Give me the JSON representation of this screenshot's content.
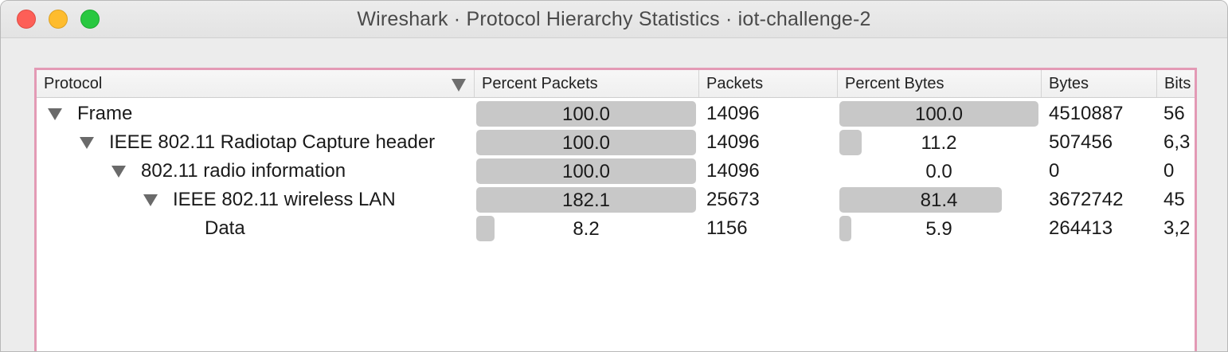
{
  "window": {
    "title": "Wireshark · Protocol Hierarchy Statistics · iot-challenge-2"
  },
  "columns": {
    "protocol": "Protocol",
    "percent_packets": "Percent Packets",
    "packets": "Packets",
    "percent_bytes": "Percent Bytes",
    "bytes": "Bytes",
    "bits": "Bits"
  },
  "rows": [
    {
      "protocol": "Frame",
      "level": 0,
      "expandable": true,
      "percent_packets": "100.0",
      "percent_packets_fill": 1.0,
      "packets": "14096",
      "percent_bytes": "100.0",
      "percent_bytes_fill": 1.0,
      "bytes": "4510887",
      "bits": "56"
    },
    {
      "protocol": "IEEE 802.11 Radiotap Capture header",
      "level": 1,
      "expandable": true,
      "percent_packets": "100.0",
      "percent_packets_fill": 1.0,
      "packets": "14096",
      "percent_bytes": "11.2",
      "percent_bytes_fill": 0.112,
      "bytes": "507456",
      "bits": "6,3"
    },
    {
      "protocol": "802.11 radio information",
      "level": 2,
      "expandable": true,
      "percent_packets": "100.0",
      "percent_packets_fill": 1.0,
      "packets": "14096",
      "percent_bytes": "0.0",
      "percent_bytes_fill": 0.0,
      "bytes": "0",
      "bits": "0"
    },
    {
      "protocol": "IEEE 802.11 wireless LAN",
      "level": 3,
      "expandable": true,
      "percent_packets": "182.1",
      "percent_packets_fill": 1.0,
      "packets": "25673",
      "percent_bytes": "81.4",
      "percent_bytes_fill": 0.814,
      "bytes": "3672742",
      "bits": "45"
    },
    {
      "protocol": "Data",
      "level": 4,
      "expandable": false,
      "percent_packets": "8.2",
      "percent_packets_fill": 0.082,
      "packets": "1156",
      "percent_bytes": "5.9",
      "percent_bytes_fill": 0.059,
      "bytes": "264413",
      "bits": "3,2"
    }
  ],
  "colors": {
    "bar": "#c8c8c8",
    "focus_ring": "#e39ab5"
  }
}
